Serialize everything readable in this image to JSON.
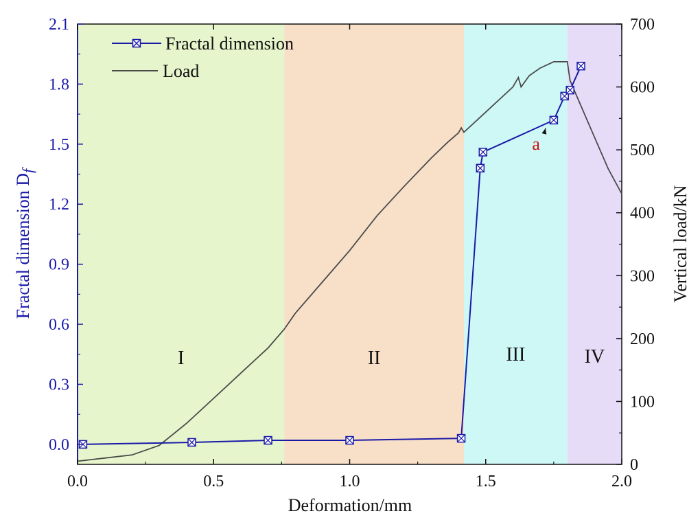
{
  "chart_data": {
    "type": "line",
    "xlabel": "Deformation/mm",
    "ylabel_left": "Fractal dimension D",
    "ylabel_left_subscript": "f",
    "ylabel_right": "Vertical load/kN",
    "xlim": [
      0.0,
      2.0
    ],
    "ylim_left": [
      -0.1,
      2.1
    ],
    "ylim_right": [
      0,
      700
    ],
    "x_ticks": [
      "0.0",
      "0.5",
      "1.0",
      "1.5",
      "2.0"
    ],
    "y_left_ticks": [
      "0.0",
      "0.3",
      "0.6",
      "0.9",
      "1.2",
      "1.5",
      "1.8",
      "2.1"
    ],
    "y_right_ticks": [
      "0",
      "100",
      "200",
      "300",
      "400",
      "500",
      "600",
      "700"
    ],
    "regions": [
      {
        "label": "I",
        "x_start": 0.0,
        "x_end": 0.76,
        "color": "#e6f5cc"
      },
      {
        "label": "II",
        "x_start": 0.76,
        "x_end": 1.42,
        "color": "#f8dfc8"
      },
      {
        "label": "III",
        "x_start": 1.42,
        "x_end": 1.8,
        "color": "#cdf8f6"
      },
      {
        "label": "IV",
        "x_start": 1.8,
        "x_end": 2.0,
        "color": "#e6dcf8"
      }
    ],
    "series": [
      {
        "name": "Fractal dimension",
        "axis": "left",
        "color": "#1a1aa8",
        "marker": "boxed-x",
        "x": [
          0.02,
          0.42,
          0.7,
          1.0,
          1.41,
          1.48,
          1.49,
          1.75,
          1.79,
          1.81,
          1.85
        ],
        "y": [
          0.0,
          0.01,
          0.02,
          0.02,
          0.03,
          1.38,
          1.46,
          1.62,
          1.74,
          1.77,
          1.89
        ]
      },
      {
        "name": "Load",
        "axis": "right",
        "color": "#4a4a4a",
        "x": [
          0.0,
          0.1,
          0.2,
          0.3,
          0.4,
          0.5,
          0.6,
          0.7,
          0.76,
          0.8,
          0.9,
          1.0,
          1.1,
          1.2,
          1.3,
          1.36,
          1.4,
          1.41,
          1.42,
          1.5,
          1.55,
          1.6,
          1.62,
          1.63,
          1.66,
          1.7,
          1.75,
          1.8,
          1.81,
          1.85,
          1.9,
          1.95,
          2.0
        ],
        "y": [
          5,
          10,
          15,
          30,
          65,
          105,
          145,
          185,
          215,
          240,
          290,
          340,
          395,
          442,
          487,
          512,
          527,
          535,
          528,
          560,
          580,
          600,
          615,
          600,
          618,
          630,
          640,
          640,
          610,
          570,
          520,
          470,
          430
        ]
      }
    ],
    "annotation": {
      "text": "a",
      "x": 1.67,
      "y_left": 1.5,
      "arrow_to_x": 1.75,
      "arrow_to_y_left": 1.62,
      "color": "#cc1111"
    },
    "legend": {
      "placement": "top-left"
    },
    "colors": {
      "left_axis": "#1a1aa8",
      "right_axis": "#111111"
    }
  }
}
